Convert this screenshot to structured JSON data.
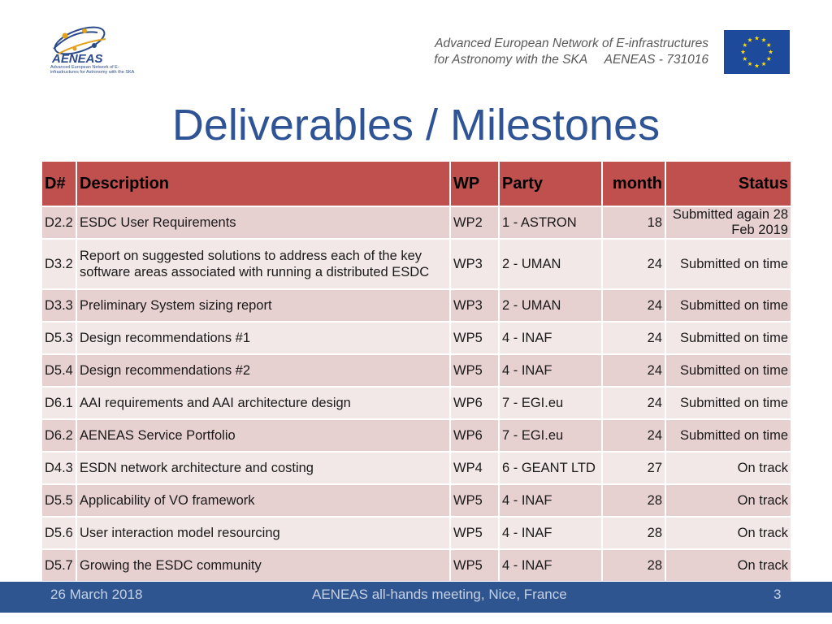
{
  "header": {
    "line1": "Advanced European Network of E-infrastructures",
    "line2": "for Astronomy with the SKA     AENEAS - 731016"
  },
  "logo": {
    "name": "AENEAS",
    "subtitle": "Advanced European Network of E-infrastructures for Astronomy with the SKA"
  },
  "title": "Deliverables / Milestones",
  "table": {
    "columns": [
      "D#",
      "Description",
      "WP",
      "Party",
      "month",
      "Status"
    ],
    "rows": [
      {
        "id": "D2.2",
        "description": "ESDC User Requirements",
        "wp": "WP2",
        "party": "1 - ASTRON",
        "month": "18",
        "status": "Submitted again 28 Feb 2019"
      },
      {
        "id": "D3.2",
        "description": "Report on suggested solutions to address each of the key software areas associated with running a distributed ESDC",
        "wp": "WP3",
        "party": "2 - UMAN",
        "month": "24",
        "status": "Submitted on time"
      },
      {
        "id": "D3.3",
        "description": "Preliminary System sizing report",
        "wp": "WP3",
        "party": "2 - UMAN",
        "month": "24",
        "status": "Submitted on time"
      },
      {
        "id": "D5.3",
        "description": "Design recommendations #1",
        "wp": "WP5",
        "party": "4 - INAF",
        "month": "24",
        "status": "Submitted on time"
      },
      {
        "id": "D5.4",
        "description": "Design recommendations #2",
        "wp": "WP5",
        "party": "4 - INAF",
        "month": "24",
        "status": "Submitted on time"
      },
      {
        "id": "D6.1",
        "description": "AAI requirements and AAI architecture design",
        "wp": "WP6",
        "party": "7 - EGI.eu",
        "month": "24",
        "status": "Submitted on time"
      },
      {
        "id": "D6.2",
        "description": "AENEAS Service Portfolio",
        "wp": "WP6",
        "party": "7 - EGI.eu",
        "month": "24",
        "status": "Submitted on time"
      },
      {
        "id": "D4.3",
        "description": "ESDN network architecture and costing",
        "wp": "WP4",
        "party": "6 - GEANT LTD",
        "month": "27",
        "status": "On track"
      },
      {
        "id": "D5.5",
        "description": "Applicability of VO framework",
        "wp": "WP5",
        "party": "4 - INAF",
        "month": "28",
        "status": "On track"
      },
      {
        "id": "D5.6",
        "description": "User interaction model resourcing",
        "wp": "WP5",
        "party": "4 - INAF",
        "month": "28",
        "status": "On track"
      },
      {
        "id": "D5.7",
        "description": "Growing the ESDC community",
        "wp": "WP5",
        "party": "4 - INAF",
        "month": "28",
        "status": "On track"
      }
    ]
  },
  "footer": {
    "date": "26 March 2018",
    "event": "AENEAS all-hands meeting, Nice, France",
    "page": "3"
  },
  "colors": {
    "accent": "#2f5496",
    "header_row": "#c0504d",
    "row_dark": "#e7d0d0",
    "row_light": "#f3e8e8",
    "footer_bar": "#2e5590",
    "eu_blue": "#1d4a9b",
    "eu_star": "#ffdd00"
  }
}
